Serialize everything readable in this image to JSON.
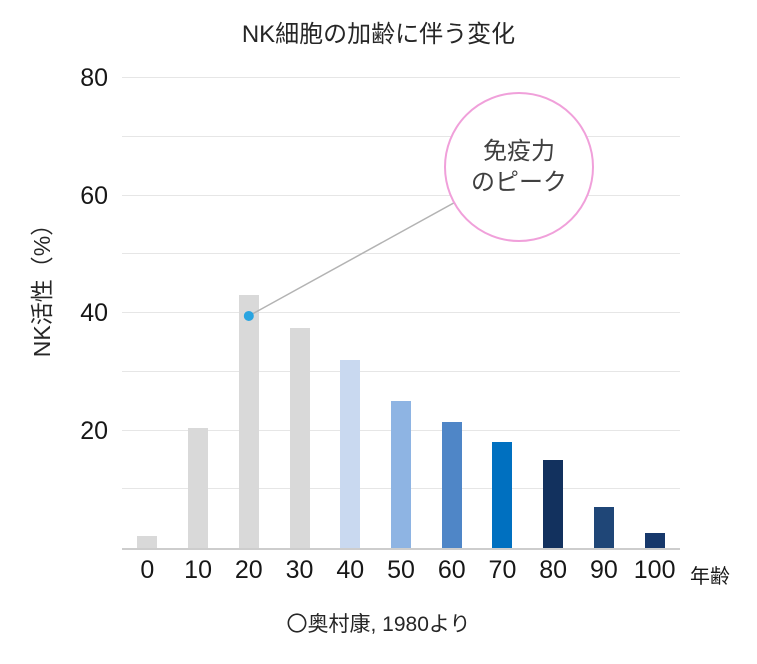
{
  "title": "NK細胞の加齢に伴う変化",
  "caption": "〇奥村康, 1980より",
  "chart_data": {
    "type": "bar",
    "title": "NK細胞の加齢に伴う変化",
    "xlabel": "年齢",
    "ylabel": "NK活性（%）",
    "categories": [
      "0",
      "10",
      "20",
      "30",
      "40",
      "50",
      "60",
      "70",
      "80",
      "90",
      "100"
    ],
    "values": [
      2,
      20.5,
      43,
      37.5,
      32,
      25,
      21.5,
      18,
      15,
      7,
      2.5
    ],
    "bar_colors": [
      "#d9d9d9",
      "#d9d9d9",
      "#d9d9d9",
      "#d9d9d9",
      "#c9d9f0",
      "#8eb4e3",
      "#4f86c7",
      "#0070c0",
      "#12315e",
      "#1f4677",
      "#17386b"
    ],
    "ylim": [
      0,
      80
    ],
    "ytick_values": [
      20,
      40,
      60,
      80
    ],
    "gridline_step": 10,
    "grid": true,
    "legend": "none"
  },
  "annotation": {
    "line1": "免疫力",
    "line2": "のピーク",
    "target_category": "20",
    "marker_value": 39.5,
    "circle_color": "#f0a0da",
    "marker_color": "#29a4e0",
    "leader_color": "#b3b3b3"
  }
}
